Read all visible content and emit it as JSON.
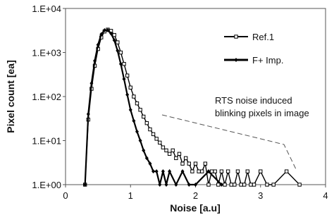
{
  "chart_data": {
    "type": "line",
    "x_label": "Noise  [a.u]",
    "y_label": "Pixel count [ea]",
    "xlim": [
      0,
      4
    ],
    "xticks": [
      0,
      1,
      2,
      3,
      4
    ],
    "ylim": [
      1,
      10000
    ],
    "log_y": true,
    "yticks": [
      {
        "value": 1,
        "label": "1.E+00"
      },
      {
        "value": 10,
        "label": "1.E+01"
      },
      {
        "value": 100,
        "label": "1.E+02"
      },
      {
        "value": 1000,
        "label": "1.E+03"
      },
      {
        "value": 10000,
        "label": "1.E+04"
      }
    ],
    "grid": false,
    "legend": "upper right",
    "annotation": "RTS noise induced blinking pixels in image",
    "series": [
      {
        "name": "Ref.1",
        "color": "#000000",
        "marker": "open-square",
        "x": [
          0.3,
          0.35,
          0.4,
          0.45,
          0.5,
          0.55,
          0.6,
          0.65,
          0.7,
          0.75,
          0.8,
          0.85,
          0.9,
          0.95,
          1.0,
          1.05,
          1.1,
          1.15,
          1.2,
          1.25,
          1.3,
          1.35,
          1.4,
          1.45,
          1.5,
          1.55,
          1.6,
          1.65,
          1.7,
          1.75,
          1.8,
          1.85,
          1.9,
          1.95,
          2.0,
          2.05,
          2.1,
          2.15,
          2.2,
          2.25,
          2.3,
          2.35,
          2.4,
          2.45,
          2.5,
          2.55,
          2.6,
          2.65,
          2.7,
          2.75,
          2.8,
          2.85,
          2.9,
          3.0,
          3.1,
          3.2,
          3.4,
          3.6
        ],
        "values": [
          1,
          30,
          150,
          500,
          1200,
          2200,
          3000,
          3300,
          3100,
          2500,
          1700,
          1000,
          550,
          300,
          160,
          100,
          70,
          50,
          35,
          25,
          18,
          14,
          11,
          9,
          7,
          6,
          5,
          6,
          4,
          5,
          3,
          4,
          3,
          2,
          3,
          2,
          2,
          3,
          1,
          2,
          2,
          1,
          2,
          1,
          2,
          1,
          1,
          2,
          1,
          1,
          2,
          1,
          1,
          2,
          1,
          1,
          2,
          1
        ]
      },
      {
        "name": "F+ Imp.",
        "color": "#000000",
        "marker": "diamond",
        "x": [
          0.3,
          0.35,
          0.4,
          0.45,
          0.5,
          0.55,
          0.6,
          0.65,
          0.7,
          0.75,
          0.8,
          0.85,
          0.9,
          0.95,
          1.0,
          1.05,
          1.1,
          1.15,
          1.2,
          1.25,
          1.3,
          1.35,
          1.4,
          1.45,
          1.5,
          1.55,
          1.6,
          1.7,
          1.8,
          1.9,
          2.0,
          2.2,
          2.4
        ],
        "values": [
          1,
          40,
          200,
          650,
          1500,
          2600,
          3200,
          3200,
          2700,
          1900,
          1100,
          550,
          250,
          110,
          50,
          28,
          16,
          10,
          6,
          4,
          3,
          2,
          2,
          1,
          2,
          1,
          2,
          1,
          2,
          1,
          1,
          2,
          1
        ]
      }
    ]
  }
}
